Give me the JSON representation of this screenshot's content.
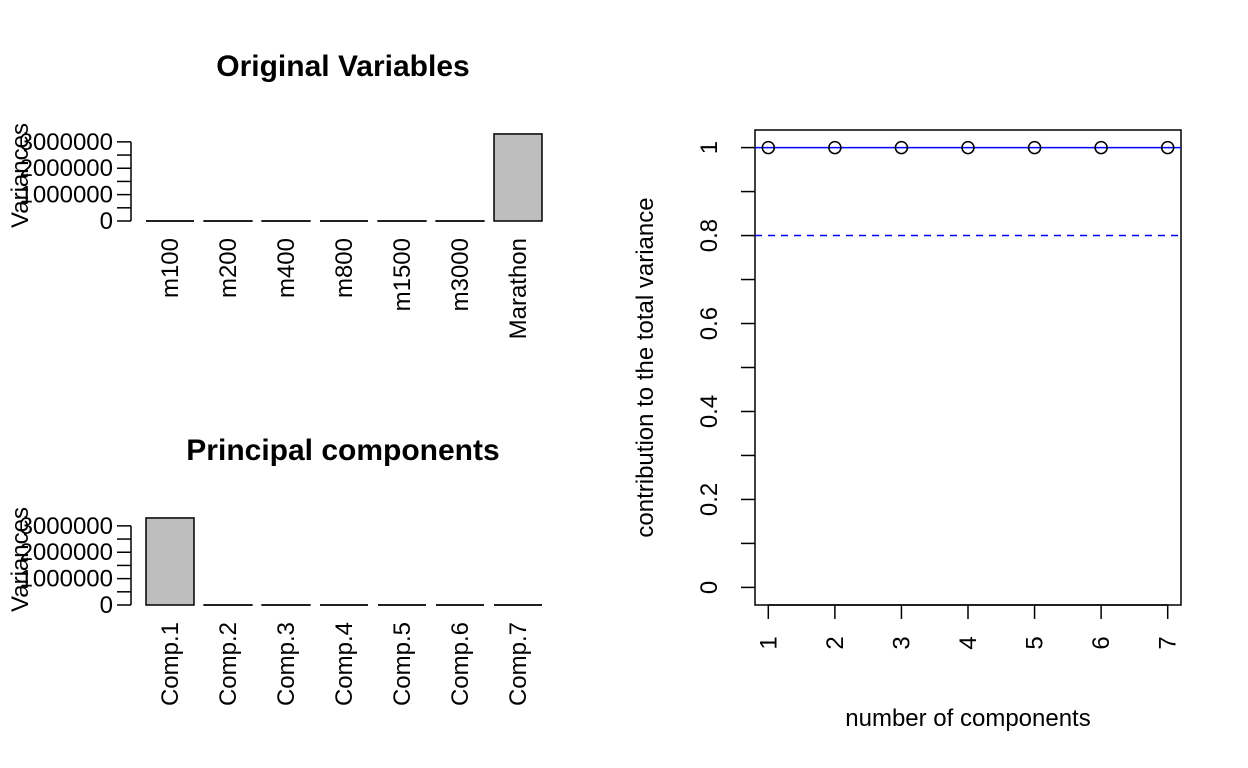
{
  "chart_data": [
    {
      "type": "bar",
      "title": "Original Variables",
      "ylabel": "Variances",
      "categories": [
        "m100",
        "m200",
        "m400",
        "m800",
        "m1500",
        "m3000",
        "Marathon"
      ],
      "values": [
        0.15,
        0.7,
        5.0,
        0.2,
        2.0,
        15.0,
        3300000
      ],
      "yticks": [
        0,
        1000000,
        2000000,
        3000000
      ],
      "ytick_labels": [
        "0",
        "1000000",
        "2000000",
        "3000000"
      ],
      "ylim": [
        0,
        3450000
      ],
      "bar_color": "#bebebe"
    },
    {
      "type": "bar",
      "title": "Principal components",
      "ylabel": "Variances",
      "categories": [
        "Comp.1",
        "Comp.2",
        "Comp.3",
        "Comp.4",
        "Comp.5",
        "Comp.6",
        "Comp.7"
      ],
      "values": [
        3300000,
        5.0,
        1.5,
        0.5,
        0.3,
        0.1,
        0.05
      ],
      "yticks": [
        0,
        1000000,
        2000000,
        3000000
      ],
      "ytick_labels": [
        "0",
        "1000000",
        "2000000",
        "3000000"
      ],
      "ylim": [
        0,
        3450000
      ],
      "bar_color": "#bebebe"
    },
    {
      "type": "line",
      "xlabel": "number of components",
      "ylabel": "contribution to the total variance",
      "x": [
        1,
        2,
        3,
        4,
        5,
        6,
        7
      ],
      "y": [
        0.99999,
        0.999997,
        0.999998,
        0.999999,
        0.9999995,
        0.9999999,
        1.0
      ],
      "xticks": [
        1,
        2,
        3,
        4,
        5,
        6,
        7
      ],
      "yticks": [
        0,
        0.2,
        0.4,
        0.6,
        0.8,
        1
      ],
      "ytick_labels": [
        "0",
        "0.2",
        "0.4",
        "0.6",
        "0.8",
        "1"
      ],
      "xlim": [
        0.8,
        7.2
      ],
      "ylim": [
        -0.04,
        1.04
      ],
      "reference_lines": [
        {
          "y": 1.0,
          "style": "solid",
          "color": "#0000ff"
        },
        {
          "y": 0.8,
          "style": "dashed",
          "color": "#0000ff"
        }
      ]
    }
  ]
}
